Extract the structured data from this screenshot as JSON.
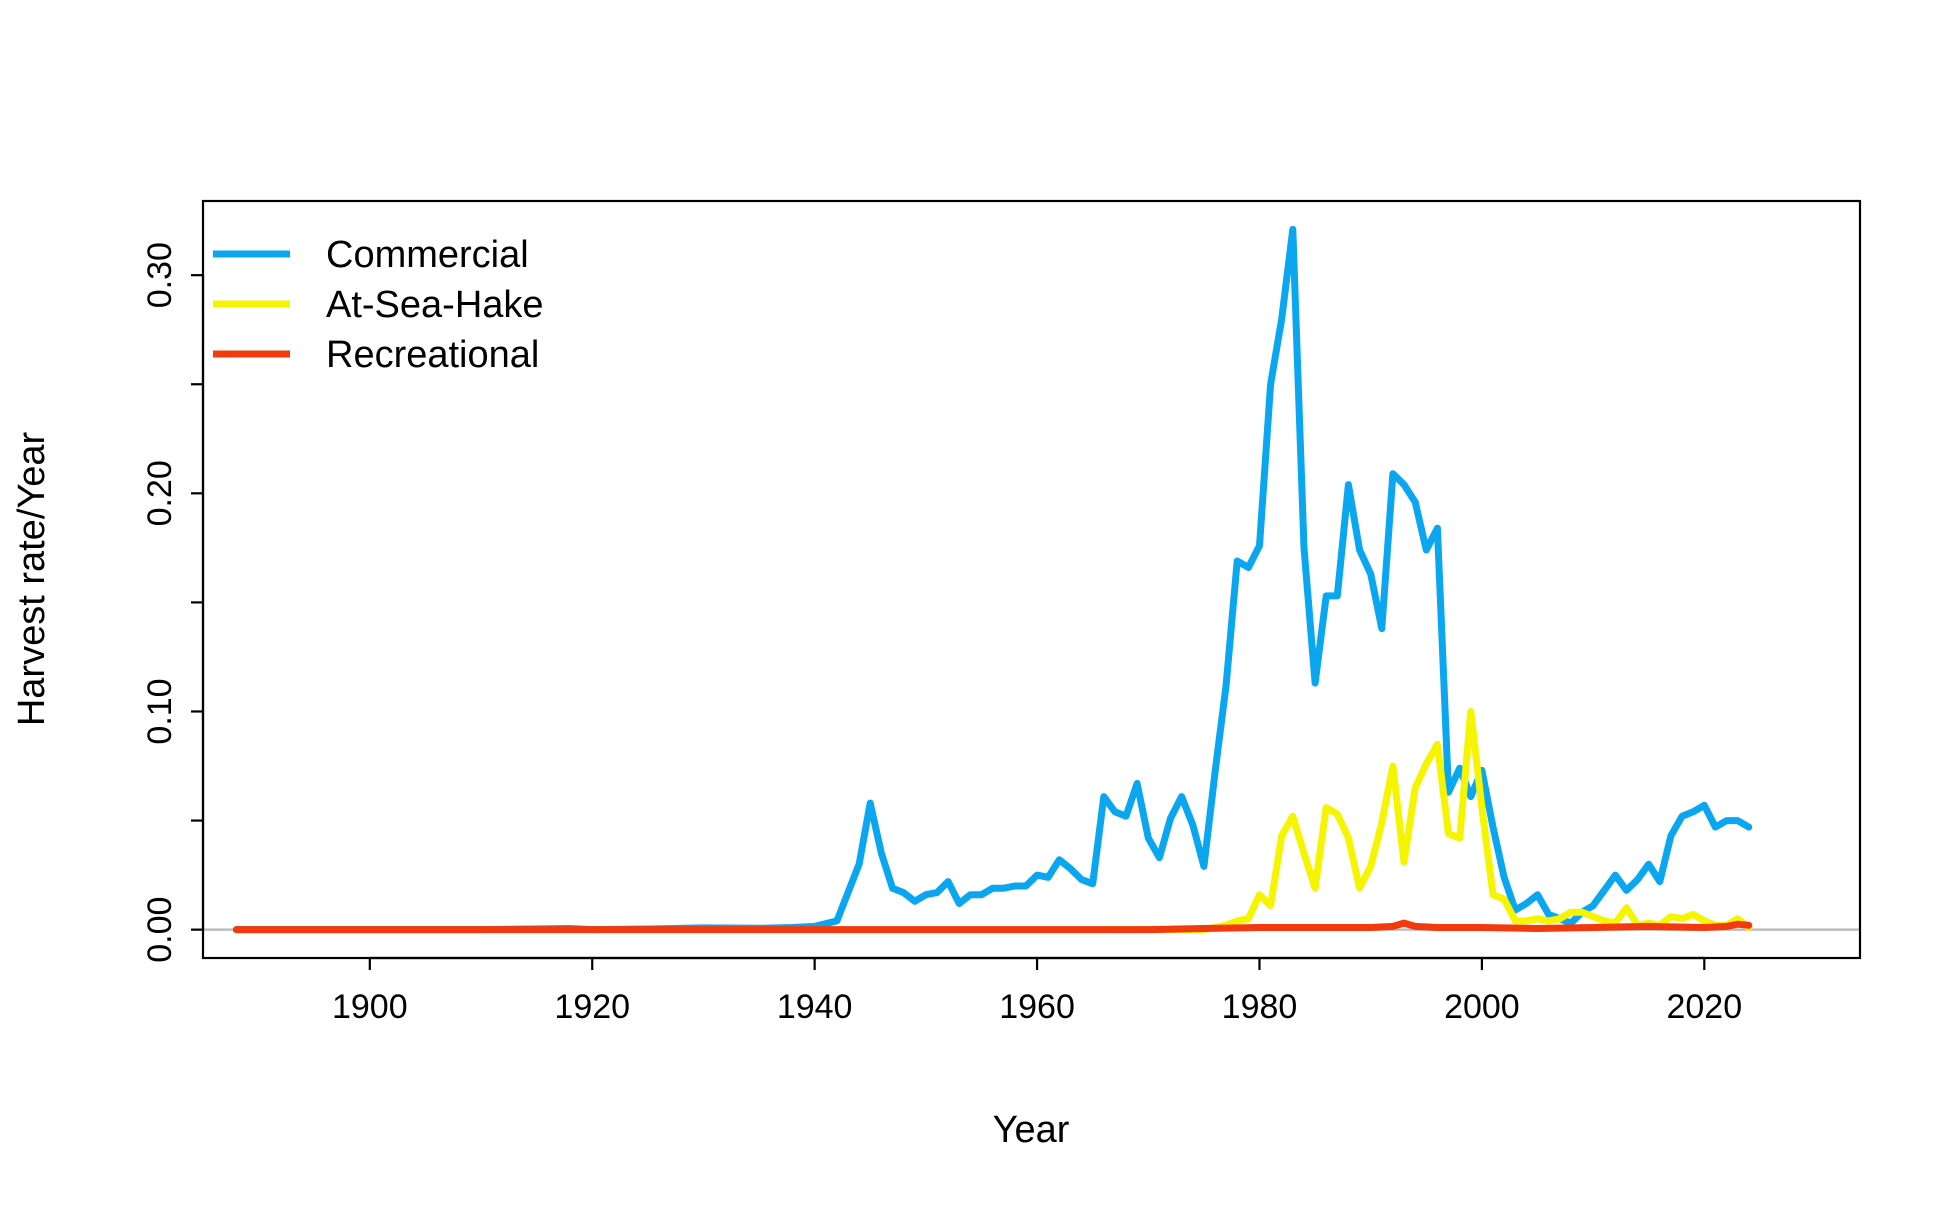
{
  "chart_data": {
    "type": "line",
    "title": "",
    "xlabel": "Year",
    "ylabel": "Harvest rate/Year",
    "xlim": [
      1885,
      2034
    ],
    "ylim": [
      -0.013,
      0.334
    ],
    "x_ticks": [
      1900,
      1920,
      1940,
      1960,
      1980,
      2000,
      2020
    ],
    "x_tick_labels": [
      "1900",
      "1920",
      "1940",
      "1960",
      "1980",
      "2000",
      "2020"
    ],
    "y_ticks": [
      0.0,
      0.05,
      0.1,
      0.15,
      0.2,
      0.25,
      0.3
    ],
    "y_tick_labels": [
      "0.00",
      "",
      "0.10",
      "",
      "0.20",
      "",
      "0.30"
    ],
    "reference_line": {
      "y": 0,
      "color": "#BEBEBE"
    },
    "grid": false,
    "legend_position": "top-left",
    "colors": {
      "commercial": "#0BA6F0",
      "at_sea_hake": "#F5F500",
      "recreational": "#F23A0E"
    },
    "series": [
      {
        "name": "Commercial",
        "color": "#0BA6F0",
        "x": [
          1888,
          1900,
          1910,
          1918,
          1920,
          1925,
          1930,
          1935,
          1938,
          1940,
          1942,
          1944,
          1945,
          1946,
          1947,
          1948,
          1949,
          1950,
          1951,
          1952,
          1953,
          1954,
          1955,
          1956,
          1957,
          1958,
          1959,
          1960,
          1961,
          1962,
          1963,
          1964,
          1965,
          1966,
          1967,
          1968,
          1969,
          1970,
          1971,
          1972,
          1973,
          1974,
          1975,
          1976,
          1977,
          1978,
          1979,
          1980,
          1981,
          1982,
          1983,
          1984,
          1985,
          1986,
          1987,
          1988,
          1989,
          1990,
          1991,
          1992,
          1993,
          1994,
          1995,
          1996,
          1997,
          1998,
          1999,
          2000,
          2001,
          2002,
          2003,
          2004,
          2005,
          2006,
          2007,
          2008,
          2009,
          2010,
          2011,
          2012,
          2013,
          2014,
          2015,
          2016,
          2017,
          2018,
          2019,
          2020,
          2021,
          2022,
          2023,
          2024
        ],
        "values": [
          0.0,
          0.0,
          0.0,
          0.0005,
          0.0,
          0.0003,
          0.0008,
          0.0006,
          0.001,
          0.0015,
          0.004,
          0.03,
          0.058,
          0.035,
          0.019,
          0.017,
          0.013,
          0.016,
          0.017,
          0.022,
          0.012,
          0.016,
          0.016,
          0.019,
          0.019,
          0.02,
          0.02,
          0.025,
          0.024,
          0.032,
          0.028,
          0.023,
          0.021,
          0.061,
          0.054,
          0.052,
          0.067,
          0.042,
          0.033,
          0.051,
          0.061,
          0.048,
          0.029,
          0.072,
          0.112,
          0.169,
          0.166,
          0.176,
          0.25,
          0.28,
          0.321,
          0.175,
          0.113,
          0.153,
          0.153,
          0.204,
          0.174,
          0.163,
          0.138,
          0.209,
          0.204,
          0.196,
          0.174,
          0.184,
          0.063,
          0.074,
          0.061,
          0.073,
          0.047,
          0.024,
          0.009,
          0.012,
          0.016,
          0.007,
          0.005,
          0.003,
          0.008,
          0.011,
          0.018,
          0.025,
          0.018,
          0.023,
          0.03,
          0.022,
          0.043,
          0.052,
          0.054,
          0.057,
          0.047,
          0.05,
          0.05,
          0.047
        ]
      },
      {
        "name": "At-Sea-Hake",
        "color": "#F5F500",
        "x": [
          1966,
          1970,
          1975,
          1976,
          1977,
          1978,
          1979,
          1980,
          1981,
          1982,
          1983,
          1984,
          1985,
          1986,
          1987,
          1988,
          1989,
          1990,
          1991,
          1992,
          1993,
          1994,
          1995,
          1996,
          1997,
          1998,
          1999,
          2000,
          2001,
          2002,
          2003,
          2004,
          2005,
          2006,
          2007,
          2008,
          2009,
          2010,
          2011,
          2012,
          2013,
          2014,
          2015,
          2016,
          2017,
          2018,
          2019,
          2020,
          2021,
          2022,
          2023,
          2024
        ],
        "values": [
          0.0,
          0.0,
          0.0,
          0.001,
          0.002,
          0.004,
          0.005,
          0.016,
          0.011,
          0.043,
          0.052,
          0.035,
          0.019,
          0.056,
          0.053,
          0.042,
          0.019,
          0.029,
          0.049,
          0.075,
          0.031,
          0.065,
          0.076,
          0.085,
          0.044,
          0.042,
          0.1,
          0.056,
          0.016,
          0.014,
          0.004,
          0.004,
          0.005,
          0.004,
          0.005,
          0.008,
          0.008,
          0.006,
          0.004,
          0.003,
          0.01,
          0.002,
          0.003,
          0.002,
          0.006,
          0.005,
          0.007,
          0.004,
          0.002,
          0.002,
          0.005,
          0.001
        ]
      },
      {
        "name": "Recreational",
        "color": "#F23A0E",
        "x": [
          1888,
          1900,
          1920,
          1940,
          1960,
          1965,
          1970,
          1975,
          1980,
          1985,
          1990,
          1992,
          1993,
          1994,
          1996,
          2000,
          2005,
          2010,
          2015,
          2020,
          2022,
          2023,
          2024
        ],
        "values": [
          0.0,
          0.0,
          0.0,
          0.0,
          0.0,
          0.0,
          0.0,
          0.0005,
          0.001,
          0.001,
          0.001,
          0.0015,
          0.003,
          0.0015,
          0.001,
          0.001,
          0.0005,
          0.001,
          0.0015,
          0.001,
          0.0015,
          0.0025,
          0.002
        ]
      }
    ]
  }
}
